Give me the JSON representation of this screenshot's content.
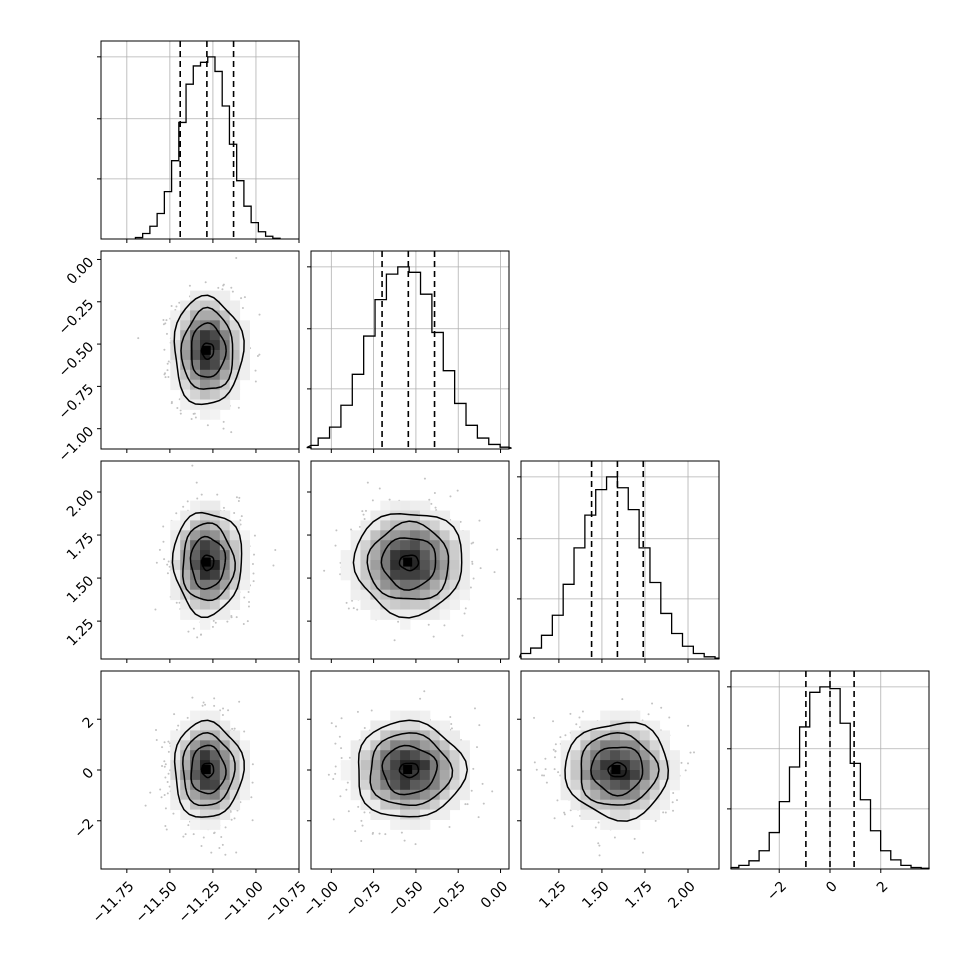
{
  "chart_data": {
    "type": "corner",
    "parameters": [
      {
        "mean": -11.28,
        "sd": 0.1,
        "range": [
          -11.9,
          -10.75
        ],
        "tick_values": [
          -11.75,
          -11.5,
          -11.25,
          -11.0,
          -10.75
        ],
        "tick_labels": [
          "−11.75",
          "−11.50",
          "−11.25",
          "−11.00",
          "−10.75"
        ],
        "quantiles": [
          -11.44,
          -11.285,
          -11.13
        ]
      },
      {
        "mean": -0.54,
        "sd": 0.16,
        "range": [
          -1.12,
          0.05
        ],
        "tick_values": [
          -1.0,
          -0.75,
          -0.5,
          -0.25,
          0.0
        ],
        "tick_labels": [
          "−1.00",
          "−0.75",
          "−0.50",
          "−0.25",
          "0.00"
        ],
        "quantiles": [
          -0.7,
          -0.545,
          -0.39
        ]
      },
      {
        "mean": 1.59,
        "sd": 0.15,
        "range": [
          1.03,
          2.18
        ],
        "tick_values": [
          1.25,
          1.5,
          1.75,
          2.0
        ],
        "tick_labels": [
          "1.25",
          "1.50",
          "1.75",
          "2.00"
        ],
        "quantiles": [
          1.44,
          1.59,
          1.74
        ]
      },
      {
        "mean": 0.0,
        "sd": 0.95,
        "range": [
          -3.9,
          3.9
        ],
        "tick_values": [
          -2,
          0,
          2
        ],
        "tick_labels": [
          "−2",
          "0",
          "2"
        ],
        "quantiles": [
          -0.95,
          0.0,
          0.95
        ]
      }
    ],
    "hist_bins": 20,
    "hist_values": [
      [
        0.008,
        0.03,
        0.07,
        0.14,
        0.26,
        0.43,
        0.64,
        0.85,
        0.95,
        0.97,
        1.0,
        0.92,
        0.73,
        0.52,
        0.32,
        0.18,
        0.09,
        0.04,
        0.015,
        0.004
      ],
      [
        0.008,
        0.02,
        0.06,
        0.12,
        0.24,
        0.41,
        0.62,
        0.82,
        0.96,
        1.0,
        0.97,
        0.85,
        0.64,
        0.43,
        0.25,
        0.13,
        0.06,
        0.025,
        0.01,
        0.004
      ],
      [
        0.012,
        0.03,
        0.06,
        0.13,
        0.24,
        0.41,
        0.61,
        0.79,
        0.93,
        1.0,
        0.94,
        0.82,
        0.61,
        0.42,
        0.25,
        0.14,
        0.07,
        0.03,
        0.012,
        0.005
      ],
      [
        0.008,
        0.02,
        0.045,
        0.1,
        0.2,
        0.37,
        0.56,
        0.78,
        0.97,
        1.0,
        0.99,
        0.8,
        0.58,
        0.38,
        0.21,
        0.1,
        0.05,
        0.02,
        0.008,
        0.004
      ]
    ],
    "contour_levels_sigma": [
      0.5,
      1.0,
      1.5,
      2.0
    ],
    "density_grid": "2D histogram, gray scale",
    "scatter": "light gray samples outside contours",
    "grid": true,
    "ylabel": "",
    "xlabel": "",
    "title": ""
  }
}
